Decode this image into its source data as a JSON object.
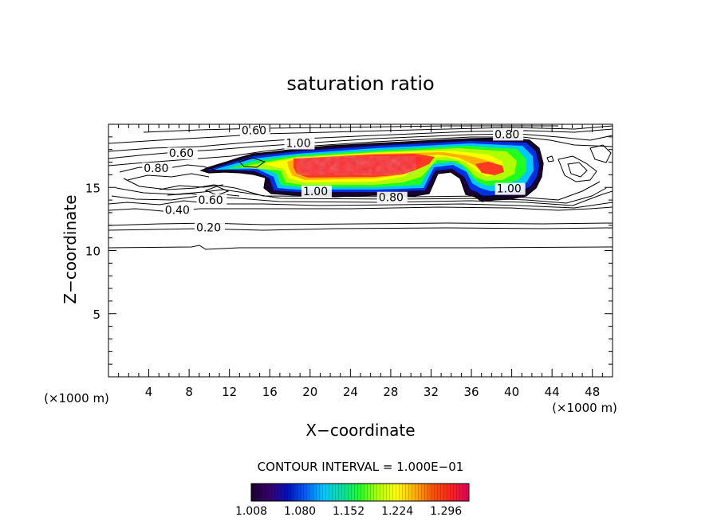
{
  "chart_data": {
    "type": "heatmap",
    "title": "saturation ratio",
    "xlabel": "X−coordinate",
    "ylabel": "Z−coordinate",
    "x_unit_left": "(×1000 m)",
    "x_unit_right": "(×1000 m)",
    "xlim": [
      0,
      50
    ],
    "ylim": [
      0,
      20
    ],
    "x_ticks": [
      4,
      8,
      12,
      16,
      20,
      24,
      28,
      32,
      36,
      40,
      44,
      48
    ],
    "x_tick_labels": [
      "4",
      "8",
      "12",
      "16",
      "20",
      "24",
      "28",
      "32",
      "36",
      "40",
      "44",
      "48"
    ],
    "y_ticks": [
      5,
      10,
      15
    ],
    "y_tick_labels": [
      "5",
      "10",
      "15"
    ],
    "contour_interval_label": "CONTOUR INTERVAL = 1.000E−01",
    "colorbar_ticks": [
      "1.008",
      "1.080",
      "1.152",
      "1.224",
      "1.296"
    ],
    "colorbar_range": [
      1.008,
      1.33
    ],
    "colormap": [
      "#1a0033",
      "#3a0070",
      "#0010c0",
      "#0060ff",
      "#00c8ff",
      "#00e0a0",
      "#20ff20",
      "#b0ff00",
      "#ffff00",
      "#ffb000",
      "#ff5000",
      "#ff2020",
      "#e00060"
    ],
    "contour_labels": [
      {
        "text": "0.60",
        "x": 13.2,
        "z": 19.2
      },
      {
        "text": "0.80",
        "x": 38.3,
        "z": 18.9
      },
      {
        "text": "1.00",
        "x": 17.6,
        "z": 18.2
      },
      {
        "text": "0.60",
        "x": 6.0,
        "z": 17.4
      },
      {
        "text": "0.80",
        "x": 3.5,
        "z": 16.2
      },
      {
        "text": "1.00",
        "x": 19.3,
        "z": 14.4
      },
      {
        "text": "0.80",
        "x": 26.8,
        "z": 13.9
      },
      {
        "text": "1.00",
        "x": 38.5,
        "z": 14.6
      },
      {
        "text": "0.60",
        "x": 8.9,
        "z": 13.7
      },
      {
        "text": "0.40",
        "x": 5.6,
        "z": 12.9
      },
      {
        "text": "0.20",
        "x": 8.7,
        "z": 11.5
      }
    ]
  }
}
